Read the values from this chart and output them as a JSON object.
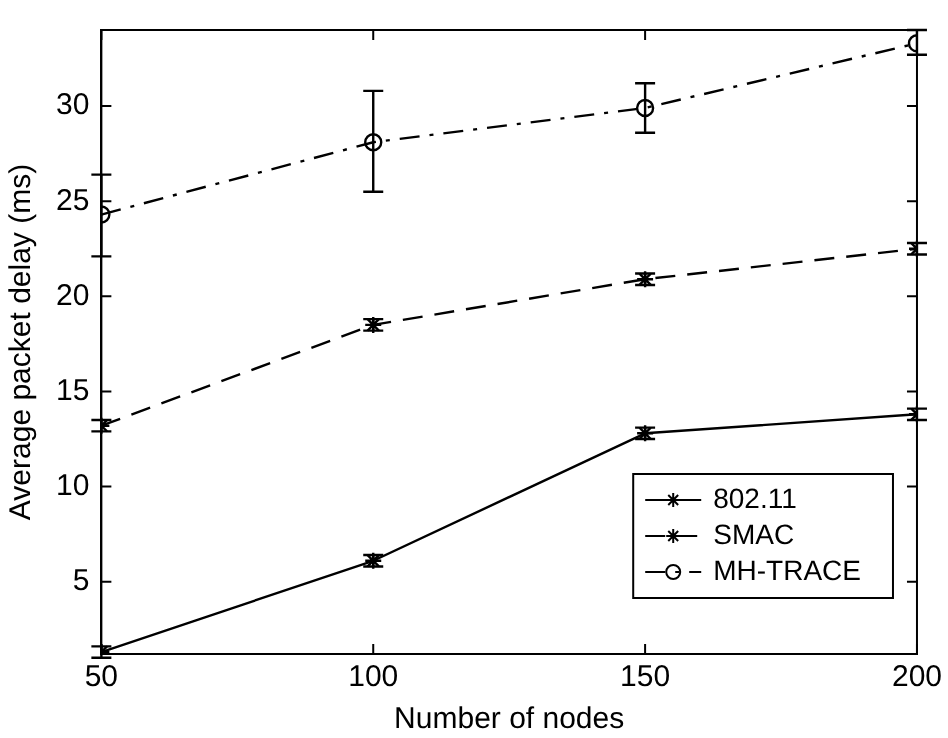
{
  "chart_data": {
    "type": "line",
    "xlabel": "Number of nodes",
    "ylabel": "Average packet delay (ms)",
    "x": [
      50,
      100,
      150,
      200
    ],
    "series": [
      {
        "name": "802.11",
        "color": "#000000",
        "line_style": "solid",
        "marker": "cross",
        "values": [
          1.3,
          6.1,
          12.8,
          13.8
        ],
        "errors": [
          0.3,
          0.3,
          0.3,
          0.3
        ]
      },
      {
        "name": "SMAC",
        "color": "#000000",
        "line_style": "dashed",
        "marker": "cross",
        "values": [
          13.2,
          18.5,
          20.9,
          22.5
        ],
        "errors": [
          0.3,
          0.3,
          0.3,
          0.3
        ]
      },
      {
        "name": "MH-TRACE",
        "color": "#000000",
        "line_style": "dashdot",
        "marker": "circle",
        "values": [
          24.3,
          28.1,
          29.9,
          33.3
        ],
        "errors": [
          [
            22.1,
            26.4
          ],
          [
            25.5,
            30.8
          ],
          [
            28.6,
            31.2
          ],
          [
            32.7,
            34
          ]
        ]
      }
    ],
    "xlim": [
      50,
      200
    ],
    "xticks": [
      50,
      100,
      150,
      200
    ],
    "ylim": [
      1.2,
      34
    ],
    "yticks": [
      5,
      10,
      15,
      20,
      25,
      30
    ],
    "grid": false,
    "legend": "bottom right"
  }
}
